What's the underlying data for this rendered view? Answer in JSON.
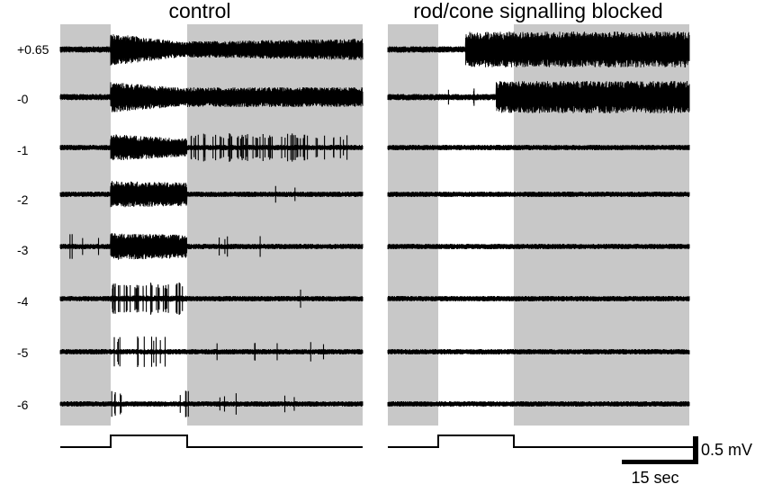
{
  "panels": [
    {
      "id": "control",
      "title": "control",
      "rows": [
        {
          "label": "+0.65",
          "on_response": "large amplitude burst, decaying",
          "off_response": "sustained large spiking"
        },
        {
          "label": "-0",
          "on_response": "large amplitude burst, decaying",
          "off_response": "sustained large spiking"
        },
        {
          "label": "-1",
          "on_response": "strong burst",
          "off_response": "bursting spikes after offset"
        },
        {
          "label": "-2",
          "on_response": "strong burst",
          "off_response": "baseline"
        },
        {
          "label": "-3",
          "on_response": "strong burst",
          "off_response": "baseline"
        },
        {
          "label": "-4",
          "on_response": "dense spiking",
          "off_response": "baseline"
        },
        {
          "label": "-5",
          "on_response": "sparse spikes",
          "off_response": "baseline"
        },
        {
          "label": "-6",
          "on_response": "few spikes",
          "off_response": "baseline"
        }
      ]
    },
    {
      "id": "blocked",
      "title": "rod/cone signalling blocked",
      "rows": [
        {
          "label": "+0.65",
          "on_response": "delayed large sustained response",
          "off_response": "sustained large spiking"
        },
        {
          "label": "-0",
          "on_response": "delayed large sustained response",
          "off_response": "sustained large spiking"
        },
        {
          "label": "-1",
          "on_response": "none",
          "off_response": "baseline"
        },
        {
          "label": "-2",
          "on_response": "none",
          "off_response": "baseline"
        },
        {
          "label": "-3",
          "on_response": "none",
          "off_response": "baseline"
        },
        {
          "label": "-4",
          "on_response": "none",
          "off_response": "baseline"
        },
        {
          "label": "-5",
          "on_response": "none",
          "off_response": "baseline"
        },
        {
          "label": "-6",
          "on_response": "none",
          "off_response": "baseline"
        }
      ]
    }
  ],
  "row_labels": [
    "+0.65",
    "-0",
    "-1",
    "-2",
    "-3",
    "-4",
    "-5",
    "-6"
  ],
  "scale_bar": {
    "voltage": "0.5 mV",
    "time": "15 sec"
  },
  "colors": {
    "shade": "#c8c8c8",
    "trace": "#000000",
    "background": "#ffffff"
  }
}
